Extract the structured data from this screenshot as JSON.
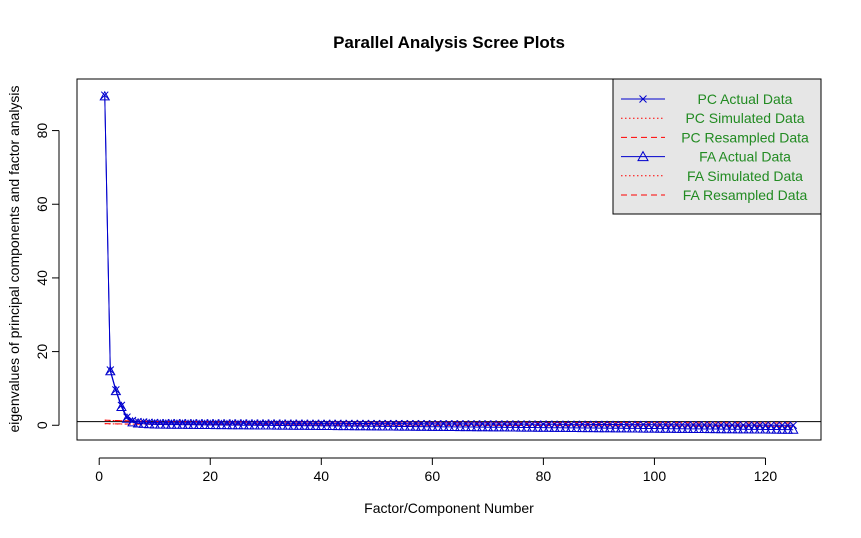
{
  "chart_data": {
    "type": "line",
    "title": "Parallel Analysis Scree Plots",
    "xlabel": "Factor/Component Number",
    "ylabel": "eigenvalues of principal components and factor analysis",
    "xlim": [
      -4,
      130
    ],
    "ylim": [
      -4,
      94
    ],
    "x_ticks": [
      0,
      20,
      40,
      60,
      80,
      100,
      120
    ],
    "y_ticks": [
      0,
      20,
      40,
      60,
      80
    ],
    "reference_line_y": 1,
    "n_points": 125,
    "legend": {
      "position": "top-right",
      "background": "#e6e6e6",
      "entries": [
        {
          "label": "PC  Actual Data",
          "color": "#0000CD",
          "line": "solid",
          "marker": "x"
        },
        {
          "label": "PC  Simulated Data",
          "color": "#FF0000",
          "line": "dotted",
          "marker": ""
        },
        {
          "label": "PC  Resampled Data",
          "color": "#FF0000",
          "line": "dashed",
          "marker": ""
        },
        {
          "label": "FA  Actual Data",
          "color": "#0000CD",
          "line": "solid",
          "marker": "triangle"
        },
        {
          "label": "FA  Simulated Data",
          "color": "#FF0000",
          "line": "dotted",
          "marker": ""
        },
        {
          "label": "FA  Resampled Data",
          "color": "#FF0000",
          "line": "dashed",
          "marker": ""
        }
      ]
    },
    "series": [
      {
        "name": "PC  Actual Data",
        "head": [
          89.6,
          15.0,
          9.6,
          5.4,
          2.2,
          1.3,
          1.0,
          0.9,
          0.8,
          0.75
        ],
        "tail_start": 0.7,
        "tail_end": 0.0
      },
      {
        "name": "PC  Simulated Data",
        "head": [
          1.35,
          1.3,
          1.27,
          1.24,
          1.2,
          1.17,
          1.14,
          1.1,
          1.07,
          1.04
        ],
        "tail_start": 1.0,
        "tail_end": 0.6
      },
      {
        "name": "PC  Resampled Data",
        "head": [
          1.4,
          1.33,
          1.29,
          1.25,
          1.21,
          1.18,
          1.14,
          1.11,
          1.08,
          1.05
        ],
        "tail_start": 1.0,
        "tail_end": 0.6
      },
      {
        "name": "FA  Actual Data",
        "head": [
          89.3,
          14.7,
          9.3,
          5.0,
          1.8,
          0.8,
          0.5,
          0.4,
          0.3,
          0.25
        ],
        "tail_start": 0.2,
        "tail_end": -1.2
      },
      {
        "name": "FA  Simulated Data",
        "head": [
          0.4,
          0.38,
          0.36,
          0.34,
          0.32,
          0.31,
          0.3,
          0.29,
          0.28,
          0.27
        ],
        "tail_start": 0.25,
        "tail_end": -0.3
      },
      {
        "name": "FA  Resampled Data",
        "head": [
          0.45,
          0.4,
          0.38,
          0.36,
          0.34,
          0.32,
          0.31,
          0.3,
          0.29,
          0.28
        ],
        "tail_start": 0.25,
        "tail_end": -0.3
      }
    ]
  }
}
